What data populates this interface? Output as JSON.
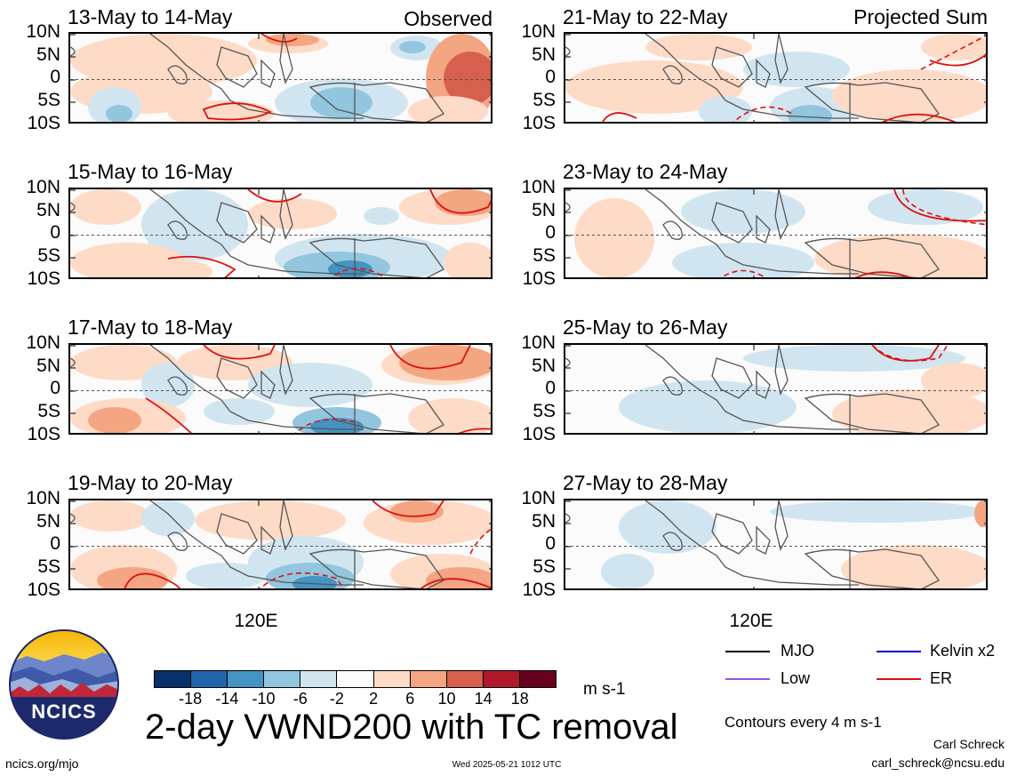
{
  "panels_left": [
    {
      "title": "13-May to 14-May",
      "note": "Observed"
    },
    {
      "title": "15-May to 16-May",
      "note": ""
    },
    {
      "title": "17-May to 18-May",
      "note": ""
    },
    {
      "title": "19-May to 20-May",
      "note": ""
    }
  ],
  "panels_right": [
    {
      "title": "21-May to 22-May",
      "note": "Projected Sum"
    },
    {
      "title": "23-May to 24-May",
      "note": ""
    },
    {
      "title": "25-May to 26-May",
      "note": ""
    },
    {
      "title": "27-May to 28-May",
      "note": ""
    }
  ],
  "lat_labels": [
    "10N",
    "5N",
    "0",
    "5S",
    "10S"
  ],
  "lon_label": "120E",
  "colorbar": {
    "ticks": [
      "-18",
      "-14",
      "-10",
      "-6",
      "-2",
      "2",
      "6",
      "10",
      "14",
      "18"
    ],
    "colors": [
      "#08306b",
      "#2166ac",
      "#4393c3",
      "#92c5de",
      "#d1e5f0",
      "#fbfbfb",
      "#fddbc7",
      "#f4a582",
      "#d6604d",
      "#b2182b",
      "#67001f"
    ],
    "units": "m s-1"
  },
  "main_title": "2-day VWND200 with TC removal",
  "legend": [
    {
      "label": "MJO",
      "color": "#000000"
    },
    {
      "label": "Kelvin x2",
      "color": "#0000cc"
    },
    {
      "label": "Low",
      "color": "#9955dd"
    },
    {
      "label": "ER",
      "color": "#dd1111"
    }
  ],
  "contour_note": "Contours every 4 m s-1",
  "author": "Carl Schreck",
  "email": "carl_schreck@ncsu.edu",
  "website": "ncics.org/mjo",
  "timestamp": "Wed 2025-05-21 1012 UTC",
  "logo_text": "NCICS"
}
